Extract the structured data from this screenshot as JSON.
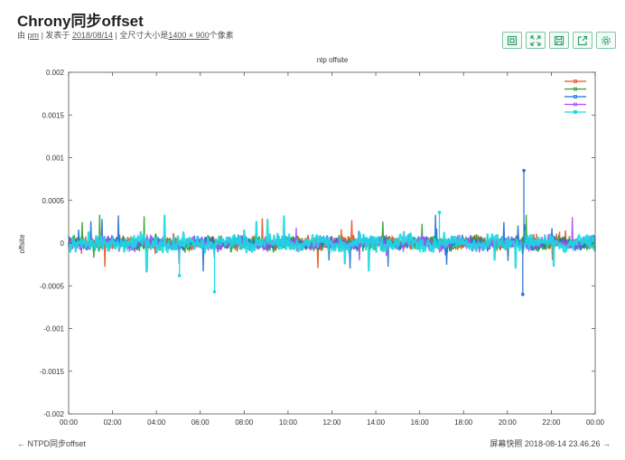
{
  "page": {
    "title": "Chrony同步offset",
    "meta": {
      "by_prefix": "由",
      "author": "pm",
      "posted_prefix": "| 发表于",
      "date": "2018/08/14",
      "size_prefix": "| 全尺寸大小是",
      "size": "1400 × 900",
      "size_suffix": "个像素"
    }
  },
  "toolbar": {
    "buttons": [
      {
        "icon": "fit-icon"
      },
      {
        "icon": "fullscreen-icon"
      },
      {
        "icon": "save-icon"
      },
      {
        "icon": "share-icon"
      },
      {
        "icon": "settings-icon"
      }
    ],
    "accent_color": "#2e9e6b"
  },
  "footer": {
    "prev_label": "← NTPD同步offset",
    "next_label": "屏幕快照 2018-08-14 23.46.26 →"
  },
  "chart_data": {
    "type": "line",
    "title": "ntp offsite",
    "xlabel": "",
    "ylabel": "offsite",
    "x_ticks": [
      "00:00",
      "02:00",
      "04:00",
      "06:00",
      "08:00",
      "10:00",
      "12:00",
      "14:00",
      "16:00",
      "18:00",
      "20:00",
      "22:00",
      "00:00"
    ],
    "y_ticks": [
      "0.002",
      "0.0015",
      "0.001",
      "0.0005",
      "0",
      "-0.0005",
      "-0.001",
      "-0.0015",
      "-0.002"
    ],
    "xlim_hours": [
      0,
      24
    ],
    "ylim": [
      -0.002,
      0.002
    ],
    "grid": false,
    "legend_placement": "top-right",
    "series": [
      {
        "color": "#e8501e",
        "marker": "plus"
      },
      {
        "color": "#2ca02c",
        "marker": "cross"
      },
      {
        "color": "#1f6fd6",
        "marker": "star"
      },
      {
        "color": "#b04cf0",
        "marker": "square"
      },
      {
        "color": "#19d9e0",
        "marker": "filled-square"
      }
    ],
    "notable_points": [
      {
        "hour": 20.75,
        "value": 0.00085
      },
      {
        "hour": 20.7,
        "value": -0.0006
      },
      {
        "hour": 6.65,
        "value": -0.00057
      },
      {
        "hour": 5.05,
        "value": -0.00038
      },
      {
        "hour": 16.9,
        "value": 0.00036
      }
    ]
  }
}
